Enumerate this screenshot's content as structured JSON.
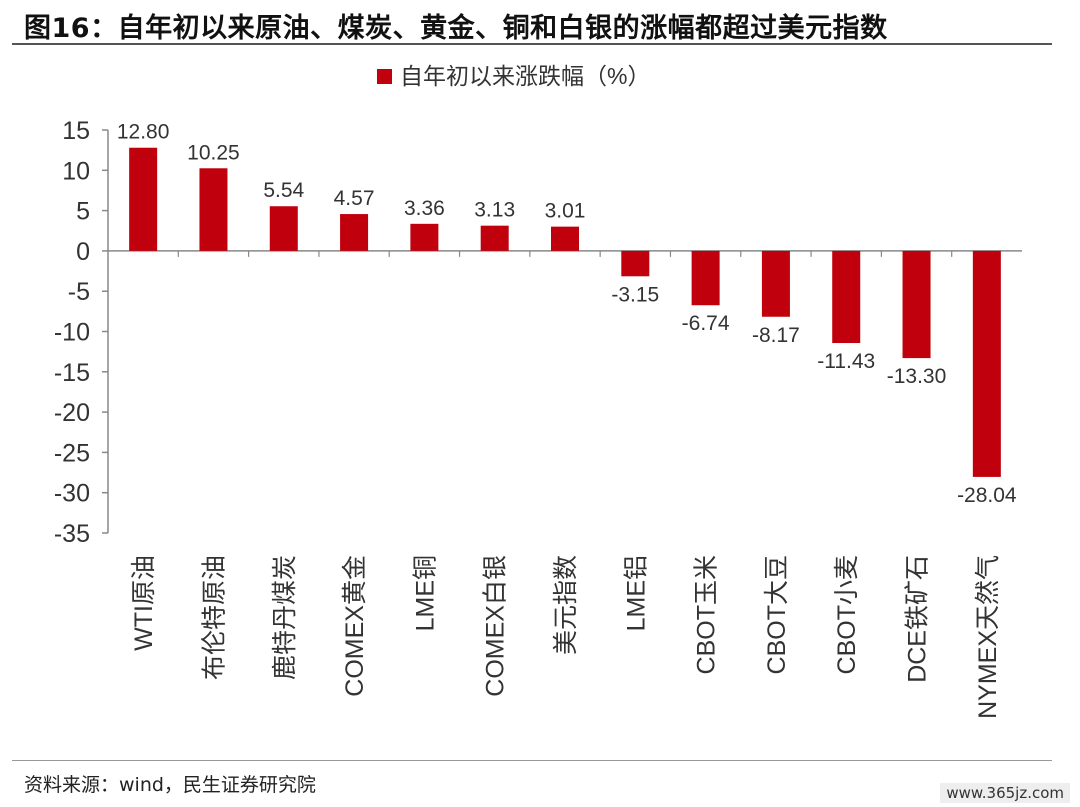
{
  "figure": {
    "title": "图16：自年初以来原油、煤炭、黄金、铜和白银的涨幅都超过美元指数",
    "source": "资料来源：wind，民生证券研究院",
    "watermark": "www.365jz.com"
  },
  "colors": {
    "bar": "#C0000C",
    "axis": "#888888",
    "text": "#333333"
  },
  "chart_data": {
    "type": "bar",
    "legend": {
      "position": "top-center",
      "entries": [
        "自年初以来涨跌幅（%）"
      ]
    },
    "categories": [
      "WTI原油",
      "布伦特原油",
      "鹿特丹煤炭",
      "COMEX黄金",
      "LME铜",
      "COMEX白银",
      "美元指数",
      "LME铝",
      "CBOT玉米",
      "CBOT大豆",
      "CBOT小麦",
      "DCE铁矿石",
      "NYMEX天然气"
    ],
    "series": [
      {
        "name": "自年初以来涨跌幅（%）",
        "values": [
          12.8,
          10.25,
          5.54,
          4.57,
          3.36,
          3.13,
          3.01,
          -3.15,
          -6.74,
          -8.17,
          -11.43,
          -13.3,
          -28.04
        ],
        "labels": [
          "12.80",
          "10.25",
          "5.54",
          "4.57",
          "3.36",
          "3.13",
          "3.01",
          "-3.15",
          "-6.74",
          "-8.17",
          "-11.43",
          "-13.30",
          "-28.04"
        ]
      }
    ],
    "ylim": [
      -35,
      15
    ],
    "yticks": [
      15,
      10,
      5,
      0,
      -5,
      -10,
      -15,
      -20,
      -25,
      -30,
      -35
    ],
    "ytick_labels": [
      "15",
      "10",
      "5",
      "0",
      "-5",
      "-10",
      "-15",
      "-20",
      "-25",
      "-30",
      "-35"
    ],
    "grid": false
  }
}
